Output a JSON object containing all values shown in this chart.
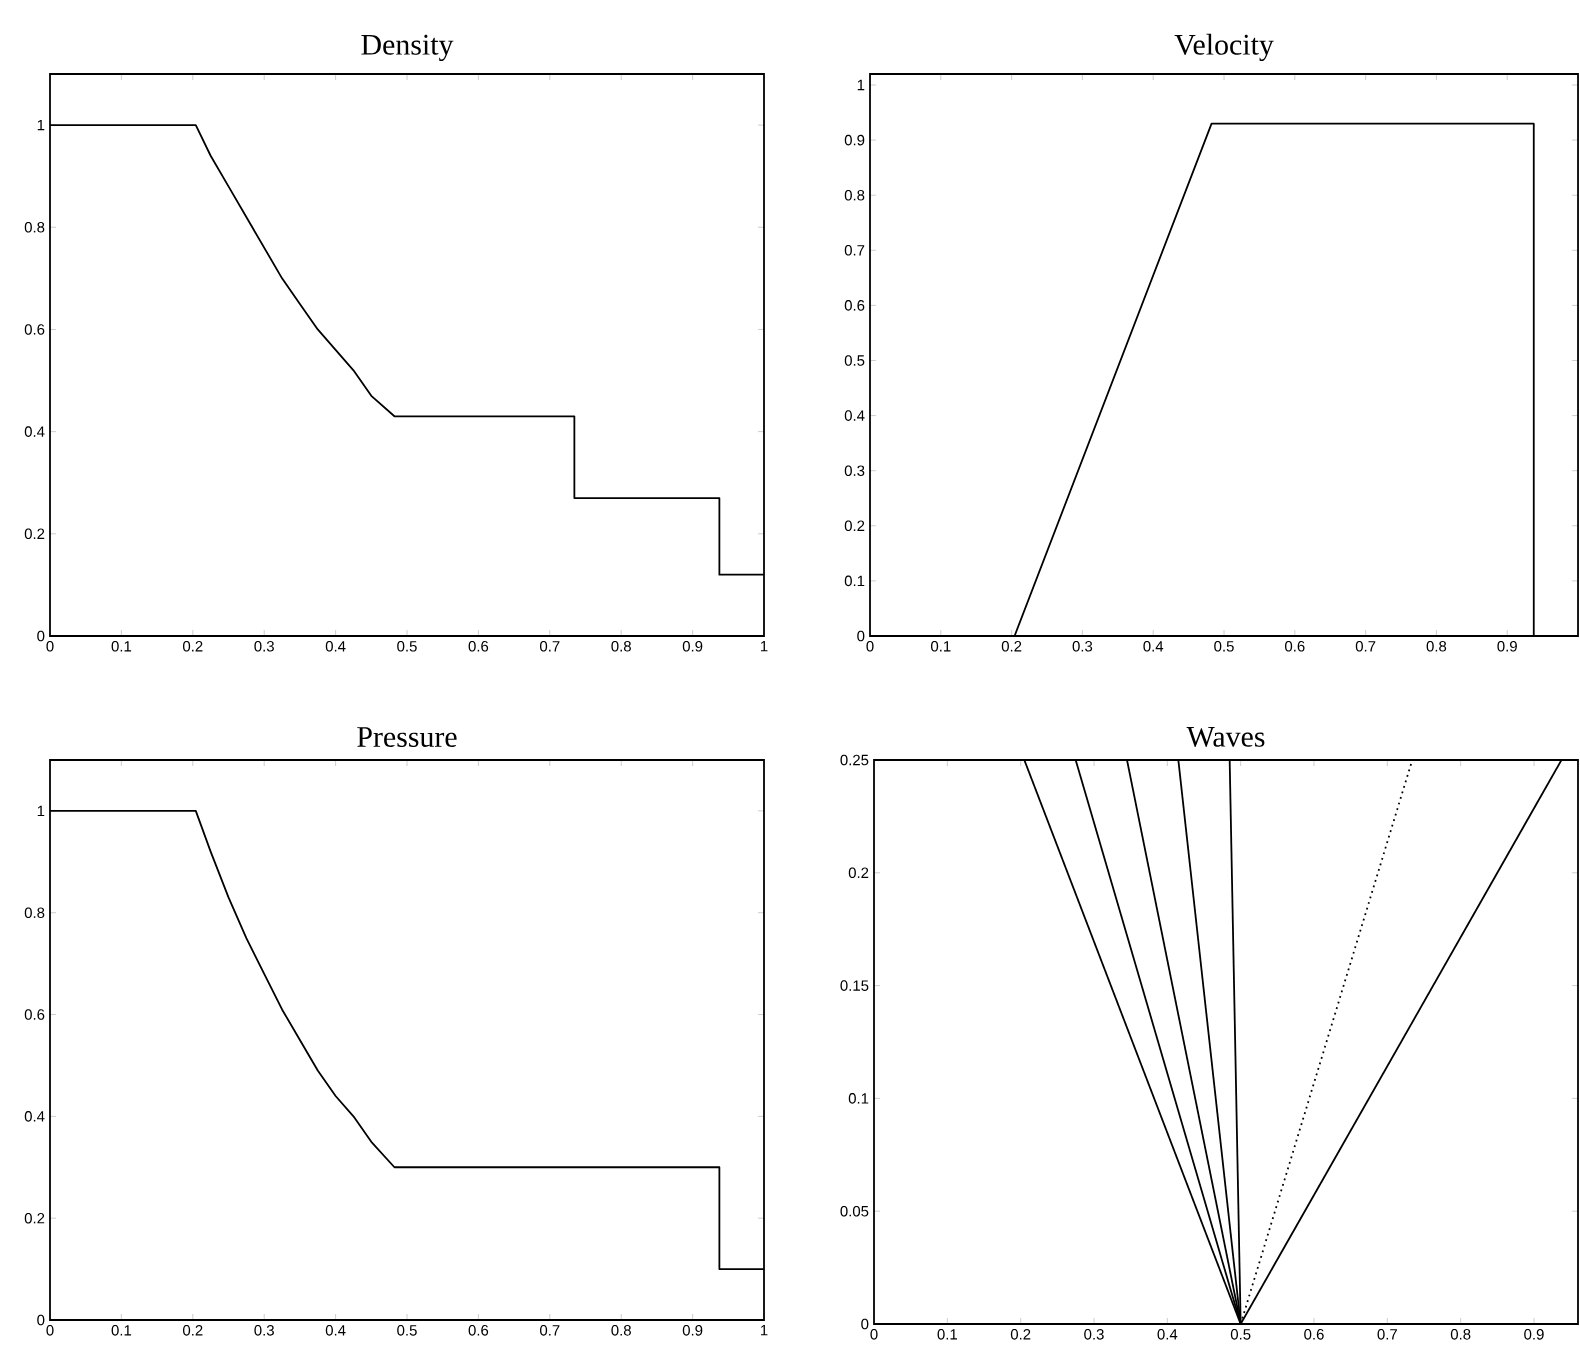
{
  "chart_data": [
    {
      "type": "line",
      "title": "Density",
      "xlim": [
        0,
        1
      ],
      "ylim": [
        0,
        1.1
      ],
      "xticks": [
        0,
        0.1,
        0.2,
        0.3,
        0.4,
        0.5,
        0.6,
        0.7,
        0.8,
        0.9,
        1
      ],
      "yticks": [
        0,
        0.2,
        0.4,
        0.6,
        0.8,
        1
      ],
      "series": [
        {
          "color": "#000000",
          "x": [
            0,
            0.2042,
            0.225,
            0.25,
            0.275,
            0.3,
            0.325,
            0.35,
            0.375,
            0.4,
            0.425,
            0.45,
            0.4824,
            0.7344,
            0.7344,
            0.9375,
            0.9375,
            1
          ],
          "values": [
            1,
            1,
            0.94,
            0.88,
            0.82,
            0.76,
            0.7,
            0.65,
            0.6,
            0.56,
            0.52,
            0.47,
            0.43,
            0.43,
            0.27,
            0.27,
            0.12,
            0.12
          ]
        }
      ]
    },
    {
      "type": "line",
      "title": "Velocity",
      "xlim": [
        0,
        1
      ],
      "ylim": [
        0,
        1.02
      ],
      "xticks": [
        0,
        0.1,
        0.2,
        0.3,
        0.4,
        0.5,
        0.6,
        0.7,
        0.8,
        0.9
      ],
      "yticks": [
        0,
        0.1,
        0.2,
        0.3,
        0.4,
        0.5,
        0.6,
        0.7,
        0.8,
        0.9,
        1
      ],
      "series": [
        {
          "color": "#000000",
          "x": [
            0,
            0.2042,
            0.4824,
            0.9375,
            0.9375,
            1
          ],
          "values": [
            0,
            0,
            0.93,
            0.93,
            0,
            0
          ]
        }
      ]
    },
    {
      "type": "line",
      "title": "Pressure",
      "xlim": [
        0,
        1
      ],
      "ylim": [
        0,
        1.1
      ],
      "xticks": [
        0,
        0.1,
        0.2,
        0.3,
        0.4,
        0.5,
        0.6,
        0.7,
        0.8,
        0.9,
        1
      ],
      "yticks": [
        0,
        0.2,
        0.4,
        0.6,
        0.8,
        1
      ],
      "series": [
        {
          "color": "#000000",
          "x": [
            0,
            0.2042,
            0.225,
            0.25,
            0.275,
            0.3,
            0.325,
            0.35,
            0.375,
            0.4,
            0.425,
            0.45,
            0.4824,
            0.9375,
            0.9375,
            1
          ],
          "values": [
            1,
            1,
            0.92,
            0.83,
            0.75,
            0.68,
            0.61,
            0.55,
            0.49,
            0.44,
            0.4,
            0.35,
            0.3,
            0.3,
            0.1,
            0.1
          ]
        }
      ]
    },
    {
      "type": "line",
      "title": "Waves",
      "xlim": [
        0,
        0.96
      ],
      "ylim": [
        0,
        0.25
      ],
      "xticks": [
        0,
        0.1,
        0.2,
        0.3,
        0.4,
        0.5,
        0.6,
        0.7,
        0.8,
        0.9
      ],
      "yticks": [
        0,
        0.05,
        0.1,
        0.15,
        0.2,
        0.25
      ],
      "series": [
        {
          "color": "#000000",
          "x": [
            0.5,
            0.205
          ],
          "values": [
            0,
            0.25
          ]
        },
        {
          "color": "#000000",
          "x": [
            0.5,
            0.275
          ],
          "values": [
            0,
            0.25
          ]
        },
        {
          "color": "#000000",
          "x": [
            0.5,
            0.345
          ],
          "values": [
            0,
            0.25
          ]
        },
        {
          "color": "#000000",
          "x": [
            0.5,
            0.415
          ],
          "values": [
            0,
            0.25
          ]
        },
        {
          "color": "#000000",
          "x": [
            0.5,
            0.485
          ],
          "values": [
            0,
            0.25
          ]
        },
        {
          "color": "#000000",
          "x": [
            0.5,
            0.734
          ],
          "values": [
            0,
            0.25
          ],
          "line_style": "dotted"
        },
        {
          "color": "#000000",
          "x": [
            0.5,
            0.9375
          ],
          "values": [
            0,
            0.25
          ]
        }
      ]
    }
  ]
}
